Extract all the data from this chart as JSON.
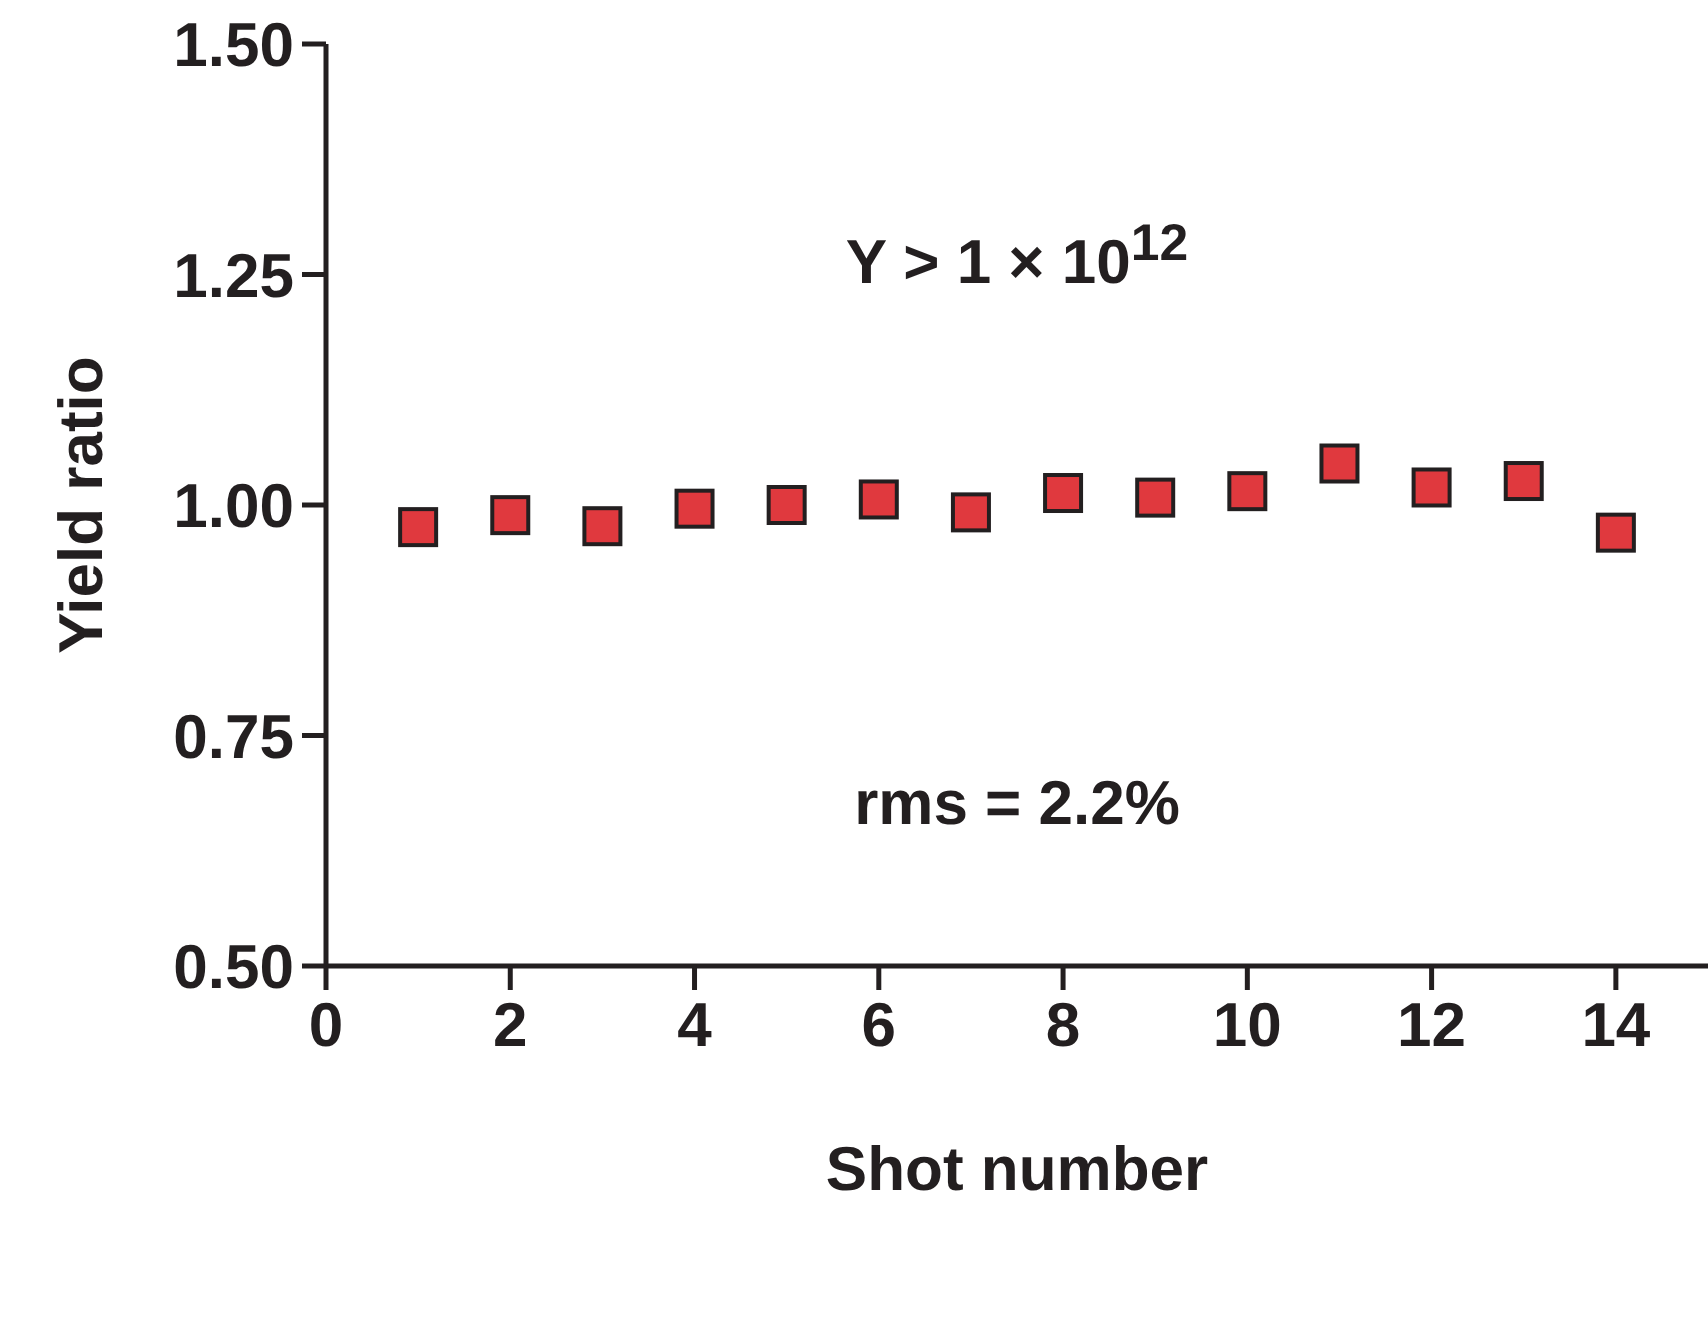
{
  "chart_data": {
    "type": "scatter",
    "xlabel": "Shot number",
    "ylabel": "Yield ratio",
    "x": [
      1,
      2,
      3,
      4,
      5,
      6,
      7,
      8,
      9,
      10,
      11,
      12,
      13,
      14
    ],
    "series": [
      {
        "color": "#e0393e",
        "values": [
          0.976,
          0.989,
          0.977,
          0.996,
          1.0,
          1.006,
          0.992,
          1.013,
          1.008,
          1.015,
          1.045,
          1.019,
          1.026,
          0.97
        ]
      }
    ],
    "marker": "square",
    "xlim": [
      0,
      15
    ],
    "xticks": [
      0,
      2,
      4,
      6,
      8,
      10,
      12,
      14
    ],
    "ylim": [
      0.5,
      1.5
    ],
    "yticks": [
      {
        "value": 0.5,
        "label": "0.50"
      },
      {
        "value": 0.75,
        "label": "0.75"
      },
      {
        "value": 1,
        "label": "1.00"
      },
      {
        "value": 1.25,
        "label": "1.25"
      },
      {
        "value": 1.5,
        "label": "1.50"
      }
    ],
    "annotations": [
      "Y > 1 × 10$^{12}$",
      "rms = 2.2%"
    ],
    "grid": false,
    "legend": false
  }
}
